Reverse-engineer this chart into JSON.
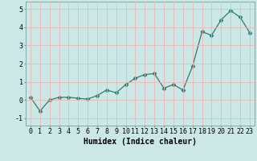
{
  "x": [
    0,
    1,
    2,
    3,
    4,
    5,
    6,
    7,
    8,
    9,
    10,
    11,
    12,
    13,
    14,
    15,
    16,
    17,
    18,
    19,
    20,
    21,
    22,
    23
  ],
  "y": [
    0.15,
    -0.6,
    0.0,
    0.15,
    0.15,
    0.1,
    0.05,
    0.25,
    0.55,
    0.4,
    0.85,
    1.2,
    1.4,
    1.45,
    0.65,
    0.85,
    0.55,
    1.85,
    3.75,
    3.55,
    4.4,
    4.9,
    4.55,
    3.7
  ],
  "xlabel": "Humidex (Indice chaleur)",
  "ylabel": "",
  "xlim": [
    -0.5,
    23.5
  ],
  "ylim": [
    -1.4,
    5.4
  ],
  "yticks": [
    -1,
    0,
    1,
    2,
    3,
    4,
    5
  ],
  "xticks": [
    0,
    1,
    2,
    3,
    4,
    5,
    6,
    7,
    8,
    9,
    10,
    11,
    12,
    13,
    14,
    15,
    16,
    17,
    18,
    19,
    20,
    21,
    22,
    23
  ],
  "line_color": "#2d7d6e",
  "marker": "D",
  "marker_size": 2.5,
  "bg_color": "#cce8e6",
  "grid_color": "#e8b8b8",
  "title_fontsize": 7,
  "label_fontsize": 7,
  "tick_fontsize": 6
}
